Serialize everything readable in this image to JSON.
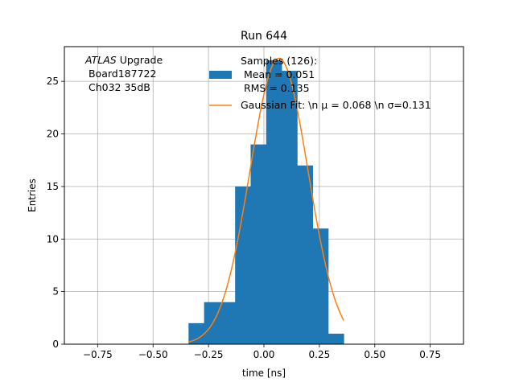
{
  "chart_data": {
    "type": "bar",
    "title": "Run 644",
    "xlabel": "time [ns]",
    "ylabel": "Entries",
    "xlim": [
      -0.9,
      0.9
    ],
    "ylim": [
      0,
      28.3
    ],
    "grid": true,
    "legend_placement": "top-right",
    "xticks": [
      -0.75,
      -0.5,
      -0.25,
      0.0,
      0.25,
      0.5,
      0.75
    ],
    "xtick_labels": [
      "−0.75",
      "−0.50",
      "−0.25",
      "0.00",
      "0.25",
      "0.50",
      "0.75"
    ],
    "yticks": [
      0,
      5,
      10,
      15,
      20,
      25
    ],
    "ytick_labels": [
      "0",
      "5",
      "10",
      "15",
      "20",
      "25"
    ],
    "histogram": {
      "bin_edges": [
        -0.34,
        -0.27,
        -0.2,
        -0.13,
        -0.06,
        0.01,
        0.08,
        0.15,
        0.22,
        0.29,
        0.36
      ],
      "counts": [
        2,
        4,
        4,
        15,
        19,
        27,
        26,
        17,
        11,
        1
      ],
      "color": "#1f77b4"
    },
    "fit": {
      "mu": 0.068,
      "sigma": 0.131,
      "amplitude": 27.2,
      "x_range": [
        -0.34,
        0.36
      ],
      "color": "#ff7f0e"
    },
    "annotation_lines": [
      "ATLAS Upgrade",
      " Board187722",
      " Ch032 35dB"
    ],
    "legend": {
      "hist_lines": [
        "Samples (126):",
        " Mean = 0.051",
        " RMS = 0.135"
      ],
      "fit_label": "Gaussian Fit: \\n μ = 0.068 \\n σ=0.131"
    }
  }
}
